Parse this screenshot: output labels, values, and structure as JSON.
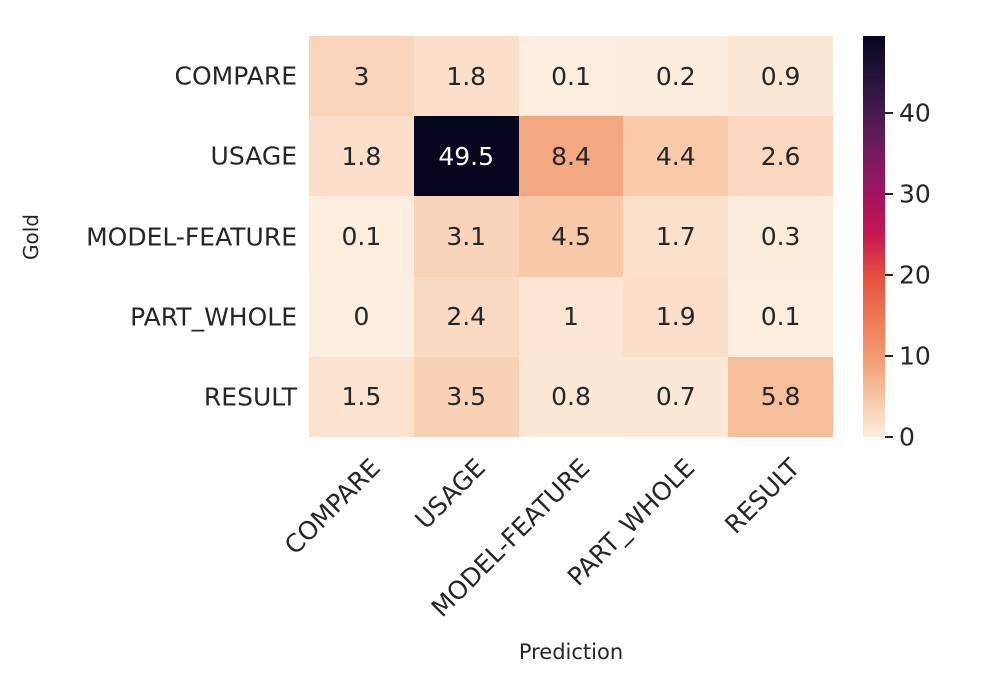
{
  "chart_data": {
    "type": "heatmap",
    "title": "",
    "xlabel": "Prediction",
    "ylabel": "Gold",
    "x_categories": [
      "COMPARE",
      "USAGE",
      "MODEL-FEATURE",
      "PART_WHOLE",
      "RESULT"
    ],
    "y_categories": [
      "COMPARE",
      "USAGE",
      "MODEL-FEATURE",
      "PART_WHOLE",
      "RESULT"
    ],
    "values": [
      [
        3,
        1.8,
        0.1,
        0.2,
        0.9
      ],
      [
        1.8,
        49.5,
        8.4,
        4.4,
        2.6
      ],
      [
        0.1,
        3.1,
        4.5,
        1.7,
        0.3
      ],
      [
        0,
        2.4,
        1,
        1.9,
        0.1
      ],
      [
        1.5,
        3.5,
        0.8,
        0.7,
        5.8
      ]
    ],
    "vmin": 0,
    "vmax": 49.5,
    "colorbar_ticks": [
      0,
      10,
      20,
      30,
      40
    ],
    "legend_position": "right-colorbar",
    "grid": false,
    "colormap": {
      "name": "rocket_r",
      "stops": [
        [
          0.0,
          "#FCEEE0"
        ],
        [
          0.1,
          "#F8C5A3"
        ],
        [
          0.2,
          "#F29B72"
        ],
        [
          0.3,
          "#ED7852"
        ],
        [
          0.4,
          "#E5503D"
        ],
        [
          0.5,
          "#C8184F"
        ],
        [
          0.6,
          "#A3135E"
        ],
        [
          0.7,
          "#791C5D"
        ],
        [
          0.8,
          "#4A1A50"
        ],
        [
          0.9,
          "#251238"
        ],
        [
          1.0,
          "#05071F"
        ]
      ]
    },
    "colors": {
      "background": "#ffffff",
      "annotation_dark": "#262626",
      "annotation_light": "#ffffff",
      "axis_text": "#262626",
      "tick_mark": "#262626"
    }
  }
}
